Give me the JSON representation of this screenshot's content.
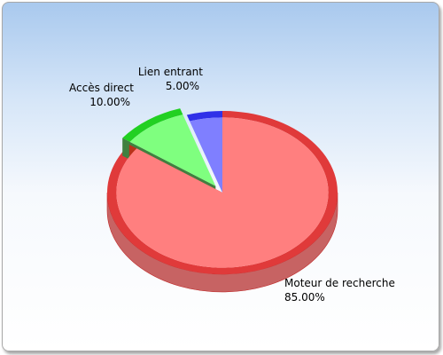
{
  "chart_data": {
    "type": "pie",
    "style": "3d",
    "categories": [
      "Moteur de recherche",
      "Accès direct",
      "Lien entrant"
    ],
    "values": [
      85,
      10,
      5
    ],
    "value_labels": [
      "85.00%",
      "10.00%",
      "5.00%"
    ],
    "colors": [
      "#ff7f7f",
      "#7fff7f",
      "#7f7fff"
    ],
    "exploded": "Accès direct",
    "legend": "none",
    "title": ""
  }
}
